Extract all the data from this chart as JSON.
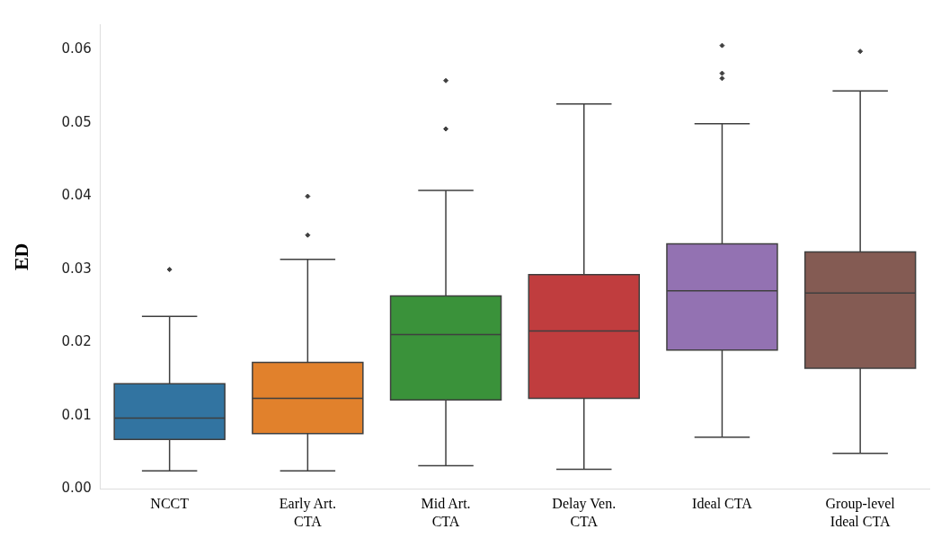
{
  "chart_data": {
    "type": "box",
    "ylabel": "ED",
    "categories": [
      "NCCT",
      "Early Art. CTA",
      "Mid Art. CTA",
      "Delay Ven. CTA",
      "Ideal CTA",
      "Group-level Ideal CTA"
    ],
    "colors": [
      "#3274a1",
      "#e1812c",
      "#3a923a",
      "#c03d3e",
      "#9372b2",
      "#845b53"
    ],
    "boxes": [
      {
        "low": 0.0025,
        "q1": 0.0068,
        "median": 0.0097,
        "q3": 0.0144,
        "high": 0.0236,
        "outliers": [
          0.03
        ]
      },
      {
        "low": 0.0025,
        "q1": 0.0076,
        "median": 0.0124,
        "q3": 0.0173,
        "high": 0.0314,
        "outliers": [
          0.0347,
          0.04
        ]
      },
      {
        "low": 0.0032,
        "q1": 0.0122,
        "median": 0.0211,
        "q3": 0.0264,
        "high": 0.0408,
        "outliers": [
          0.0492,
          0.0558
        ]
      },
      {
        "low": 0.0027,
        "q1": 0.0124,
        "median": 0.0216,
        "q3": 0.0293,
        "high": 0.0526
      },
      {
        "low": 0.0071,
        "q1": 0.019,
        "median": 0.0271,
        "q3": 0.0335,
        "high": 0.0499,
        "outliers": [
          0.0561,
          0.0568,
          0.0606
        ]
      },
      {
        "low": 0.0049,
        "q1": 0.0165,
        "median": 0.0268,
        "q3": 0.0324,
        "high": 0.0544,
        "outliers": [
          0.0598
        ]
      }
    ],
    "ylim": [
      0,
      0.0635
    ],
    "yticks": [
      {
        "value": 0,
        "label": "0.00"
      },
      {
        "value": 0.01,
        "label": "0.01"
      },
      {
        "value": 0.02,
        "label": "0.02"
      },
      {
        "value": 0.03,
        "label": "0.03"
      },
      {
        "value": 0.04,
        "label": "0.04"
      },
      {
        "value": 0.05,
        "label": "0.05"
      },
      {
        "value": 0.06,
        "label": "0.06"
      }
    ],
    "grid": false,
    "legend": false
  }
}
